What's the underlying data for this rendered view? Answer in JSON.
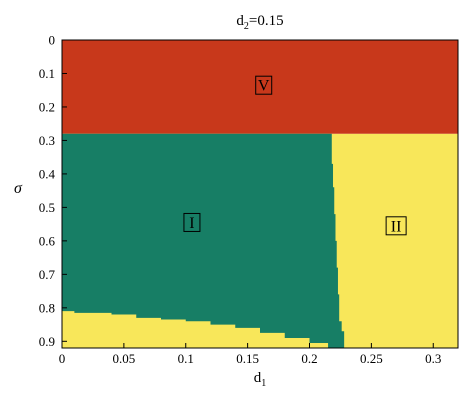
{
  "chart_data": {
    "type": "heatmap",
    "title": {
      "base": "d",
      "sub": "2",
      "rest": "=0.15"
    },
    "xlabel": {
      "base": "d",
      "sub": "1"
    },
    "ylabel": "σ",
    "xlim": [
      0,
      0.32
    ],
    "ylim": [
      0,
      0.92
    ],
    "y_inverted": true,
    "xticks": [
      0,
      0.05,
      0.1,
      0.15,
      0.2,
      0.25,
      0.3
    ],
    "xtick_labels": [
      "0",
      "0.05",
      "0.1",
      "0.15",
      "0.2",
      "0.25",
      "0.3"
    ],
    "yticks": [
      0,
      0.1,
      0.2,
      0.3,
      0.4,
      0.5,
      0.6,
      0.7,
      0.8,
      0.9
    ],
    "ytick_labels": [
      "0",
      "0.1",
      "0.2",
      "0.3",
      "0.4",
      "0.5",
      "0.6",
      "0.7",
      "0.8",
      "0.9"
    ],
    "colors": {
      "V": "#c8381b",
      "I": "#177e65",
      "II": "#f8e75a"
    },
    "regions": [
      {
        "label": "V",
        "color_key": "V",
        "label_at": [
          0.163,
          0.135
        ]
      },
      {
        "label": "I",
        "color_key": "I",
        "label_at": [
          0.105,
          0.545
        ]
      },
      {
        "label": "II",
        "color_key": "II",
        "label_at": [
          0.27,
          0.555
        ]
      }
    ],
    "boundary_V": 0.28,
    "boundary_I_II": [
      [
        0.218,
        0.28
      ],
      [
        0.218,
        0.37
      ],
      [
        0.219,
        0.44
      ],
      [
        0.22,
        0.52
      ],
      [
        0.221,
        0.6
      ],
      [
        0.222,
        0.68
      ],
      [
        0.223,
        0.76
      ],
      [
        0.224,
        0.84
      ],
      [
        0.226,
        0.87
      ],
      [
        0.228,
        0.92
      ]
    ],
    "boundary_I_bottom": [
      [
        0,
        0.8
      ],
      [
        0.01,
        0.81
      ],
      [
        0.04,
        0.815
      ],
      [
        0.06,
        0.82
      ],
      [
        0.08,
        0.83
      ],
      [
        0.1,
        0.835
      ],
      [
        0.12,
        0.84
      ],
      [
        0.14,
        0.85
      ],
      [
        0.16,
        0.86
      ],
      [
        0.18,
        0.875
      ],
      [
        0.2,
        0.89
      ],
      [
        0.215,
        0.905
      ],
      [
        0.225,
        0.92
      ]
    ]
  }
}
